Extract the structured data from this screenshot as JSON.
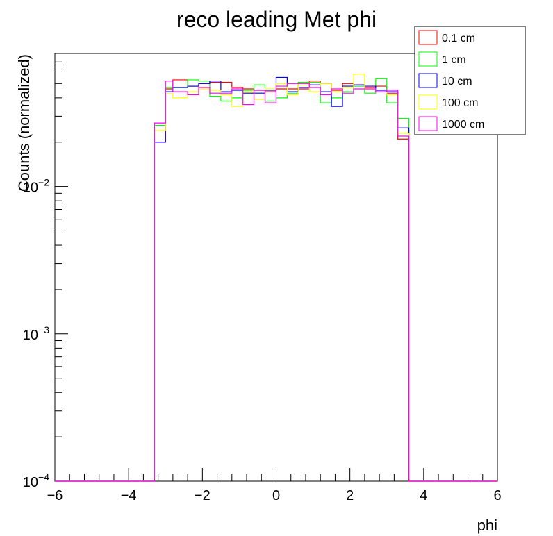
{
  "chart_data": {
    "type": "histogram",
    "title": "reco leading Met phi",
    "xlabel": "phi",
    "ylabel": "Counts (normalized)",
    "xlim": [
      -6,
      6
    ],
    "ylim": [
      0.0001,
      0.08
    ],
    "yscale": "log",
    "grid": false,
    "legend_position": "top-right",
    "x_ticks": [
      -6,
      -4,
      -2,
      0,
      2,
      4,
      6
    ],
    "x_tick_labels": [
      "−6",
      "−4",
      "−2",
      "0",
      "2",
      "4",
      "6"
    ],
    "y_tick_labels": [
      {
        "base": "10",
        "exp": "−4",
        "value": 0.0001
      },
      {
        "base": "10",
        "exp": "−3",
        "value": 0.001
      },
      {
        "base": "10",
        "exp": "−2",
        "value": 0.01
      }
    ],
    "bin_edges": [
      -6.0,
      -5.6,
      -5.2,
      -4.8,
      -4.4,
      -4.0,
      -3.6,
      -3.3,
      -3.0,
      -2.8,
      -2.4,
      -2.1,
      -1.8,
      -1.5,
      -1.2,
      -0.9,
      -0.6,
      -0.3,
      0.0,
      0.3,
      0.6,
      0.9,
      1.2,
      1.5,
      1.8,
      2.1,
      2.4,
      2.7,
      3.0,
      3.3,
      3.6,
      4.0,
      4.4,
      4.8,
      5.2,
      5.6,
      6.0
    ],
    "series": [
      {
        "name": "0.1 cm",
        "color": "#ff0000",
        "values": [
          0.0001,
          0.0001,
          0.0001,
          0.0001,
          0.0001,
          0.0001,
          0.0001,
          0.02,
          0.046,
          0.053,
          0.048,
          0.05,
          0.051,
          0.051,
          0.047,
          0.046,
          0.045,
          0.044,
          0.046,
          0.046,
          0.046,
          0.052,
          0.05,
          0.045,
          0.05,
          0.049,
          0.047,
          0.048,
          0.043,
          0.021,
          0.0001,
          0.0001,
          0.0001,
          0.0001,
          0.0001,
          0.0001
        ]
      },
      {
        "name": "1 cm",
        "color": "#00ff00",
        "values": [
          0.0001,
          0.0001,
          0.0001,
          0.0001,
          0.0001,
          0.0001,
          0.0001,
          0.026,
          0.047,
          0.047,
          0.053,
          0.052,
          0.041,
          0.038,
          0.04,
          0.045,
          0.049,
          0.038,
          0.04,
          0.043,
          0.051,
          0.051,
          0.037,
          0.04,
          0.044,
          0.048,
          0.043,
          0.054,
          0.037,
          0.029,
          0.0001,
          0.0001,
          0.0001,
          0.0001,
          0.0001,
          0.0001
        ]
      },
      {
        "name": "10 cm",
        "color": "#0000ff",
        "values": [
          0.0001,
          0.0001,
          0.0001,
          0.0001,
          0.0001,
          0.0001,
          0.0001,
          0.02,
          0.044,
          0.047,
          0.048,
          0.05,
          0.052,
          0.044,
          0.045,
          0.043,
          0.043,
          0.045,
          0.055,
          0.044,
          0.047,
          0.049,
          0.044,
          0.035,
          0.048,
          0.049,
          0.048,
          0.045,
          0.044,
          0.025,
          0.0001,
          0.0001,
          0.0001,
          0.0001,
          0.0001,
          0.0001
        ]
      },
      {
        "name": "100 cm",
        "color": "#ffff00",
        "values": [
          0.0001,
          0.0001,
          0.0001,
          0.0001,
          0.0001,
          0.0001,
          0.0001,
          0.024,
          0.043,
          0.04,
          0.044,
          0.046,
          0.045,
          0.042,
          0.035,
          0.044,
          0.039,
          0.046,
          0.05,
          0.042,
          0.049,
          0.044,
          0.05,
          0.044,
          0.047,
          0.058,
          0.046,
          0.044,
          0.042,
          0.023,
          0.0001,
          0.0001,
          0.0001,
          0.0001,
          0.0001,
          0.0001
        ]
      },
      {
        "name": "1000 cm",
        "color": "#ff00ff",
        "values": [
          0.0001,
          0.0001,
          0.0001,
          0.0001,
          0.0001,
          0.0001,
          0.0001,
          0.027,
          0.052,
          0.044,
          0.042,
          0.047,
          0.043,
          0.043,
          0.046,
          0.036,
          0.045,
          0.037,
          0.048,
          0.05,
          0.05,
          0.047,
          0.042,
          0.046,
          0.043,
          0.046,
          0.046,
          0.044,
          0.045,
          0.022,
          0.0001,
          0.0001,
          0.0001,
          0.0001,
          0.0001,
          0.0001
        ]
      }
    ]
  }
}
